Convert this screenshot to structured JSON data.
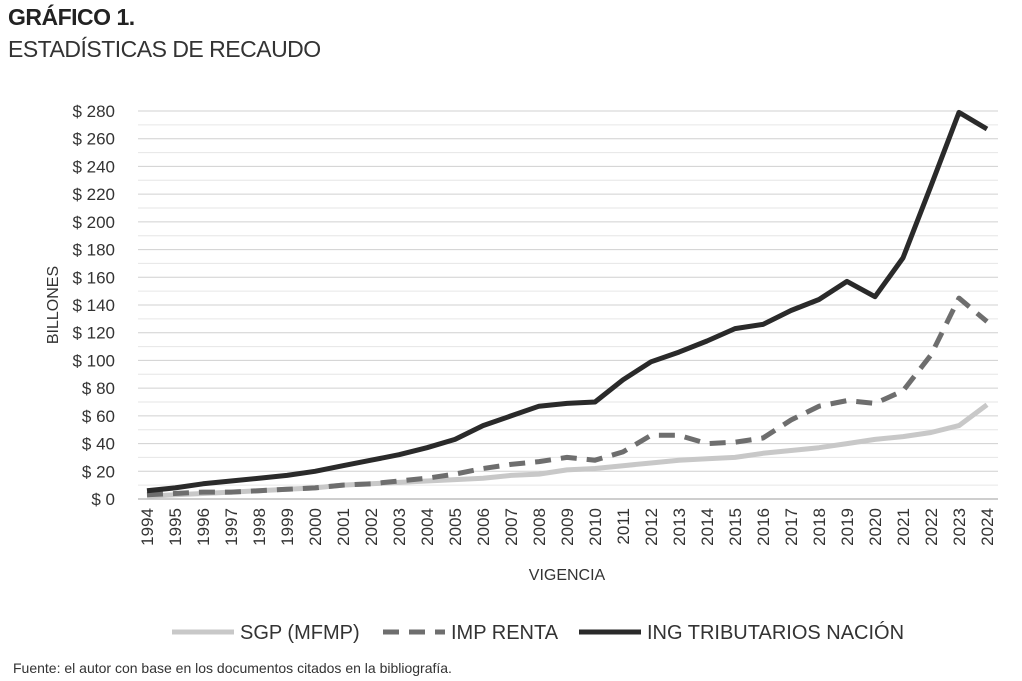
{
  "figure": {
    "label": "GRÁFICO 1.",
    "title": "ESTADÍSTICAS DE RECAUDO",
    "source": "Fuente: el autor con base en los documentos citados en la bibliografía."
  },
  "chart_data": {
    "type": "line",
    "title": "ESTADÍSTICAS DE RECAUDO",
    "xlabel": "VIGENCIA",
    "ylabel": "BILLONES",
    "ylim": [
      0,
      280
    ],
    "ytick_values": [
      0,
      20,
      40,
      60,
      80,
      100,
      120,
      140,
      160,
      180,
      200,
      220,
      240,
      260,
      280
    ],
    "ytick_labels": [
      "$ 0",
      "$ 20",
      "$ 40",
      "$ 60",
      "$ 80",
      "$ 100",
      "$ 120",
      "$ 140",
      "$ 160",
      "$ 180",
      "$ 200",
      "$ 220",
      "$ 240",
      "$ 260",
      "$ 280"
    ],
    "grid": true,
    "legend_position": "bottom",
    "categories": [
      "1994",
      "1995",
      "1996",
      "1997",
      "1998",
      "1999",
      "2000",
      "2001",
      "2002",
      "2003",
      "2004",
      "2005",
      "2006",
      "2007",
      "2008",
      "2009",
      "2010",
      "2011",
      "2012",
      "2013",
      "2014",
      "2015",
      "2016",
      "2017",
      "2018",
      "2019",
      "2020",
      "2021",
      "2022",
      "2023",
      "2024"
    ],
    "series": [
      {
        "name": "SGP (MFMP)",
        "color": "#c8c8c8",
        "style": "solid",
        "values": [
          2,
          3,
          4,
          5,
          6,
          7,
          8,
          10,
          11,
          12,
          13,
          14,
          15,
          17,
          18,
          21,
          22,
          24,
          26,
          28,
          29,
          30,
          33,
          35,
          37,
          40,
          43,
          45,
          48,
          53,
          68
        ]
      },
      {
        "name": "IMP RENTA",
        "color": "#6e6e6e",
        "style": "dashed",
        "values": [
          3,
          4,
          5,
          5,
          6,
          7,
          8,
          10,
          11,
          13,
          15,
          18,
          22,
          25,
          27,
          30,
          28,
          34,
          46,
          46,
          40,
          41,
          44,
          57,
          67,
          71,
          69,
          78,
          104,
          145,
          128
        ]
      },
      {
        "name": "ING TRIBUTARIOS NACIÓN",
        "color": "#2a2a2a",
        "style": "solid",
        "values": [
          6,
          8,
          11,
          13,
          15,
          17,
          20,
          24,
          28,
          32,
          37,
          43,
          53,
          60,
          67,
          69,
          70,
          86,
          99,
          106,
          114,
          123,
          126,
          136,
          144,
          157,
          146,
          174,
          226,
          279,
          267
        ]
      }
    ]
  }
}
